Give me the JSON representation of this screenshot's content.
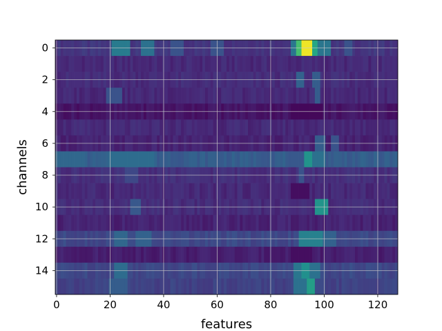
{
  "chart_data": {
    "type": "heatmap",
    "title": "",
    "xlabel": "features",
    "ylabel": "channels",
    "xlim": [
      -0.5,
      127.5
    ],
    "ylim": [
      15.5,
      -0.5
    ],
    "n_rows": 16,
    "n_cols": 128,
    "x_ticks": [
      0,
      20,
      40,
      60,
      80,
      100,
      120
    ],
    "y_ticks": [
      0,
      2,
      4,
      6,
      8,
      10,
      12,
      14
    ],
    "grid": true,
    "colormap": "viridis",
    "value_range": [
      0,
      1
    ],
    "base_levels": [
      0.16,
      0.12,
      0.13,
      0.12,
      0.06,
      0.12,
      0.1,
      0.3,
      0.14,
      0.12,
      0.13,
      0.1,
      0.22,
      0.09,
      0.22,
      0.2
    ],
    "features": [
      {
        "row": 0,
        "from": 21,
        "to": 27,
        "value": 0.42
      },
      {
        "row": 0,
        "from": 32,
        "to": 36,
        "value": 0.38
      },
      {
        "row": 0,
        "from": 43,
        "to": 47,
        "value": 0.26
      },
      {
        "row": 0,
        "from": 58,
        "to": 62,
        "value": 0.26
      },
      {
        "row": 0,
        "from": 88,
        "to": 89,
        "value": 0.4
      },
      {
        "row": 0,
        "from": 90,
        "to": 91,
        "value": 0.7
      },
      {
        "row": 0,
        "from": 92,
        "to": 95,
        "value": 0.98
      },
      {
        "row": 0,
        "from": 96,
        "to": 97,
        "value": 0.6
      },
      {
        "row": 0,
        "from": 98,
        "to": 102,
        "value": 0.4
      },
      {
        "row": 0,
        "from": 108,
        "to": 110,
        "value": 0.26
      },
      {
        "row": 2,
        "from": 90,
        "to": 92,
        "value": 0.32
      },
      {
        "row": 2,
        "from": 96,
        "to": 98,
        "value": 0.3
      },
      {
        "row": 3,
        "from": 19,
        "to": 24,
        "value": 0.26
      },
      {
        "row": 3,
        "from": 97,
        "to": 98,
        "value": 0.3
      },
      {
        "row": 4,
        "from": 88,
        "to": 99,
        "value": 0.02
      },
      {
        "row": 6,
        "from": 97,
        "to": 100,
        "value": 0.3
      },
      {
        "row": 6,
        "from": 103,
        "to": 105,
        "value": 0.26
      },
      {
        "row": 7,
        "from": 0,
        "to": 10,
        "value": 0.34
      },
      {
        "row": 7,
        "from": 20,
        "to": 36,
        "value": 0.36
      },
      {
        "row": 7,
        "from": 88,
        "to": 92,
        "value": 0.28
      },
      {
        "row": 7,
        "from": 93,
        "to": 95,
        "value": 0.52
      },
      {
        "row": 7,
        "from": 96,
        "to": 100,
        "value": 0.38
      },
      {
        "row": 8,
        "from": 26,
        "to": 30,
        "value": 0.22
      },
      {
        "row": 8,
        "from": 91,
        "to": 92,
        "value": 0.26
      },
      {
        "row": 9,
        "from": 88,
        "to": 94,
        "value": 0.04
      },
      {
        "row": 10,
        "from": 28,
        "to": 31,
        "value": 0.28
      },
      {
        "row": 10,
        "from": 97,
        "to": 101,
        "value": 0.52
      },
      {
        "row": 12,
        "from": 22,
        "to": 26,
        "value": 0.34
      },
      {
        "row": 12,
        "from": 30,
        "to": 35,
        "value": 0.32
      },
      {
        "row": 12,
        "from": 91,
        "to": 99,
        "value": 0.44
      },
      {
        "row": 12,
        "from": 100,
        "to": 104,
        "value": 0.32
      },
      {
        "row": 13,
        "from": 88,
        "to": 95,
        "value": 0.04
      },
      {
        "row": 14,
        "from": 22,
        "to": 26,
        "value": 0.36
      },
      {
        "row": 14,
        "from": 89,
        "to": 91,
        "value": 0.4
      },
      {
        "row": 14,
        "from": 92,
        "to": 94,
        "value": 0.5
      },
      {
        "row": 14,
        "from": 95,
        "to": 98,
        "value": 0.38
      },
      {
        "row": 15,
        "from": 20,
        "to": 26,
        "value": 0.3
      },
      {
        "row": 15,
        "from": 89,
        "to": 93,
        "value": 0.38
      },
      {
        "row": 15,
        "from": 94,
        "to": 96,
        "value": 0.56
      }
    ]
  }
}
